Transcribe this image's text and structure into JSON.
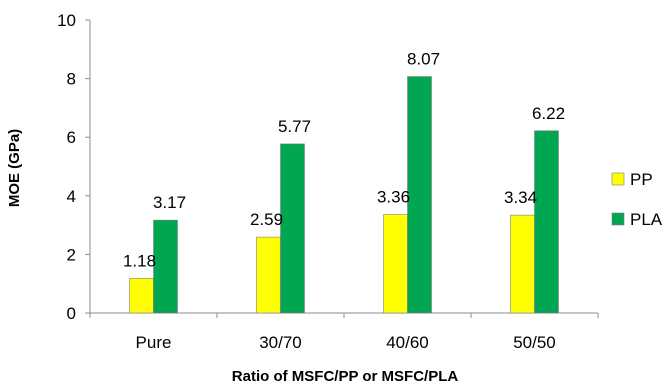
{
  "chart_data": {
    "type": "bar",
    "categories": [
      "Pure",
      "30/70",
      "40/60",
      "50/50"
    ],
    "series": [
      {
        "name": "PP",
        "values": [
          1.18,
          2.59,
          3.36,
          3.34
        ],
        "labels": [
          "1.18",
          "2.59",
          "3.36",
          "3.34"
        ],
        "color": "#FFFF00"
      },
      {
        "name": "PLA",
        "values": [
          3.17,
          5.77,
          8.07,
          6.22
        ],
        "labels": [
          "3.17",
          "5.77",
          "8.07",
          "6.22"
        ],
        "color": "#00A651"
      }
    ],
    "xlabel": "Ratio of MSFC/PP or MSFC/PLA",
    "ylabel": "MOE (GPa)",
    "ylim": [
      0,
      10
    ],
    "yticks": [
      "0",
      "2",
      "4",
      "6",
      "8",
      "10"
    ],
    "grid": false,
    "legend": "right"
  }
}
